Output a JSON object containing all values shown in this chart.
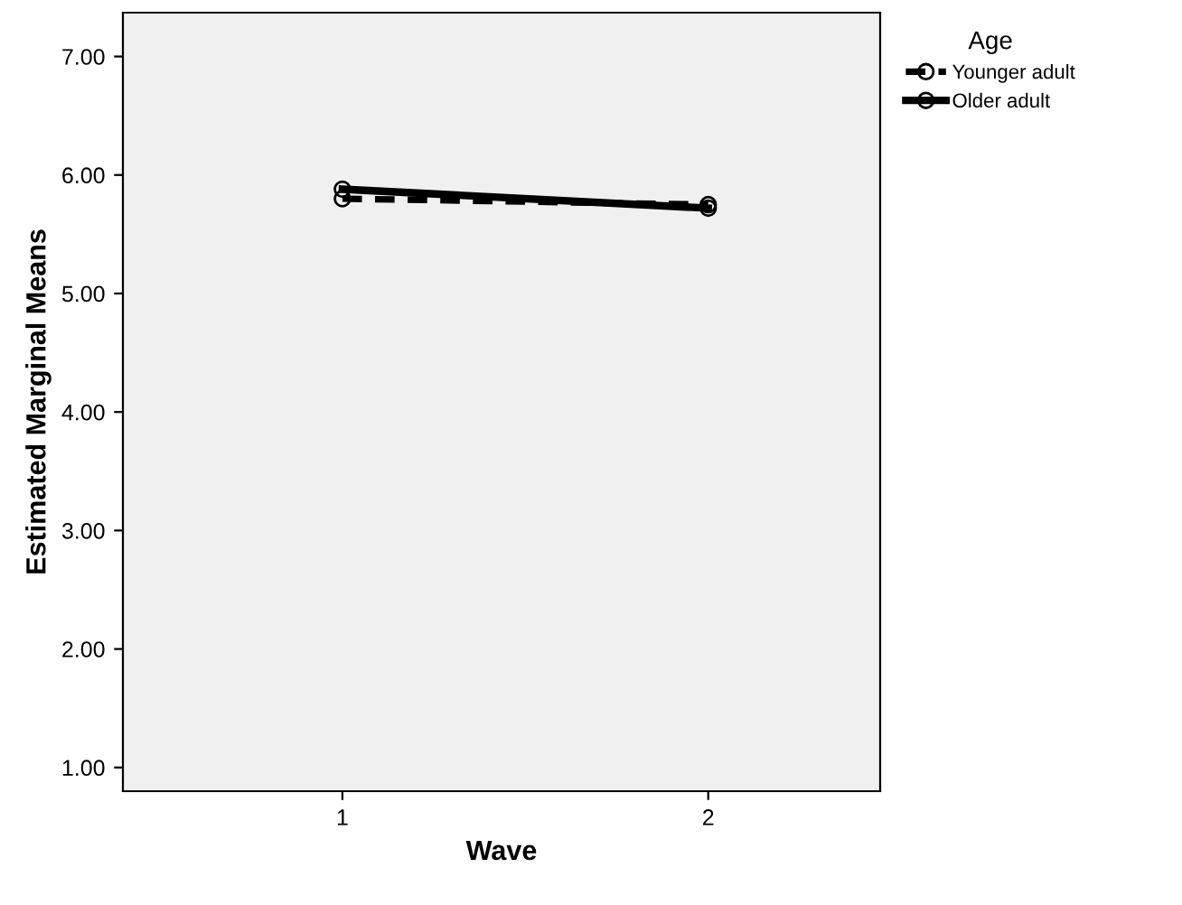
{
  "chart_data": {
    "type": "line",
    "xlabel": "Wave",
    "ylabel": "Estimated Marginal Means",
    "legend_title": "Age",
    "categories": [
      "1",
      "2"
    ],
    "series": [
      {
        "name": "Younger adult",
        "color": "#000000",
        "values": [
          5.8,
          5.75
        ],
        "line_style": "dashed"
      },
      {
        "name": "Older adult",
        "color": "#000000",
        "values": [
          5.88,
          5.72
        ],
        "line_style": "solid"
      }
    ],
    "ylim": [
      0.8,
      7.37
    ],
    "yticks": [
      {
        "value": 1,
        "label": "1.00"
      },
      {
        "value": 2,
        "label": "2.00"
      },
      {
        "value": 3,
        "label": "3.00"
      },
      {
        "value": 4,
        "label": "4.00"
      },
      {
        "value": 5,
        "label": "5.00"
      },
      {
        "value": 6,
        "label": "6.00"
      },
      {
        "value": 7,
        "label": "7.00"
      }
    ],
    "grid": false,
    "legend": "top right",
    "marker": "circle"
  }
}
